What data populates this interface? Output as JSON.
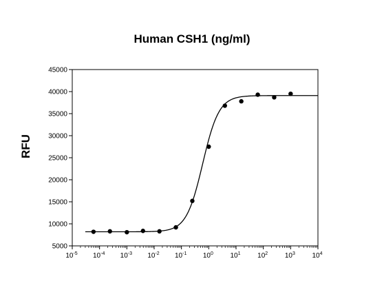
{
  "chart_data": {
    "type": "scatter",
    "title": "Human CSH1 (ng/ml)",
    "xlabel": "",
    "ylabel": "RFU",
    "x_scale": "log",
    "xlim": [
      1e-05,
      10000
    ],
    "ylim": [
      5000,
      45000
    ],
    "grid": false,
    "y_ticks": [
      5000,
      10000,
      15000,
      20000,
      25000,
      30000,
      35000,
      40000,
      45000
    ],
    "x_ticks": [
      {
        "value": 1e-05,
        "base": "10",
        "exp": "-5"
      },
      {
        "value": 0.0001,
        "base": "10",
        "exp": "-4"
      },
      {
        "value": 0.001,
        "base": "10",
        "exp": "-3"
      },
      {
        "value": 0.01,
        "base": "10",
        "exp": "-2"
      },
      {
        "value": 0.1,
        "base": "10",
        "exp": "-1"
      },
      {
        "value": 1,
        "base": "10",
        "exp": "0"
      },
      {
        "value": 10,
        "base": "10",
        "exp": "1"
      },
      {
        "value": 100,
        "base": "10",
        "exp": "2"
      },
      {
        "value": 1000,
        "base": "10",
        "exp": "3"
      },
      {
        "value": 10000,
        "base": "10",
        "exp": "4"
      }
    ],
    "series": [
      {
        "points": [
          {
            "x": 6e-05,
            "y": 8200
          },
          {
            "x": 0.00024,
            "y": 8300
          },
          {
            "x": 0.001,
            "y": 8100
          },
          {
            "x": 0.0039,
            "y": 8400
          },
          {
            "x": 0.0156,
            "y": 8300
          },
          {
            "x": 0.0625,
            "y": 9200
          },
          {
            "x": 0.25,
            "y": 15200
          },
          {
            "x": 1,
            "y": 27500
          },
          {
            "x": 3.9,
            "y": 36800
          },
          {
            "x": 15.6,
            "y": 37800
          },
          {
            "x": 62.5,
            "y": 39300
          },
          {
            "x": 250,
            "y": 38700
          },
          {
            "x": 1000,
            "y": 39500
          }
        ],
        "fit": {
          "model": "4PL",
          "bottom": 8200,
          "top": 39100,
          "ec50": 0.6,
          "hill": 1.45
        }
      }
    ]
  }
}
